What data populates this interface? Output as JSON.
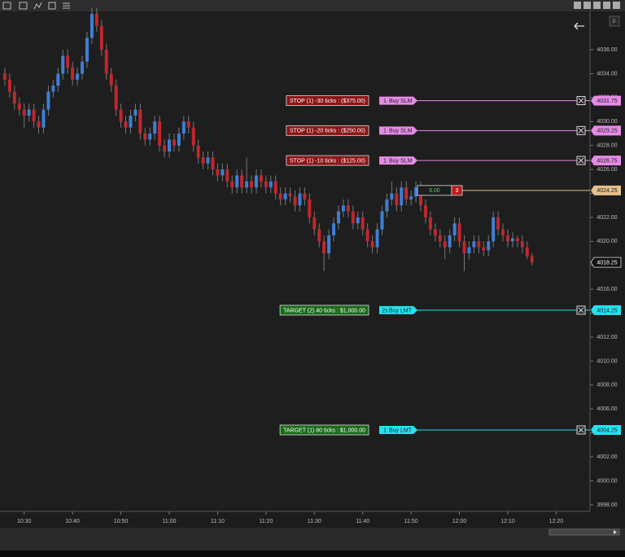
{
  "toolbar": {
    "flag": "F"
  },
  "chart_data": {
    "type": "candlestick",
    "x": [
      626,
      627,
      628,
      629,
      630,
      631,
      632,
      633,
      634,
      635,
      636,
      637,
      638,
      639,
      640,
      641,
      642,
      643,
      644,
      645,
      646,
      647,
      648,
      649,
      650,
      651,
      652,
      653,
      654,
      655,
      656,
      657,
      658,
      659,
      660,
      661,
      662,
      663,
      664,
      665,
      666,
      667,
      668,
      669,
      670,
      671,
      672,
      673,
      674,
      675,
      676,
      677,
      678,
      679,
      680,
      681,
      682,
      683,
      684,
      685,
      686,
      687,
      688,
      689,
      690,
      691,
      692,
      693,
      694,
      695,
      696,
      697,
      698,
      699,
      700,
      701,
      702,
      703,
      704,
      705,
      706,
      707,
      708,
      709,
      710,
      711,
      712,
      713,
      714,
      715,
      716,
      717,
      718,
      719,
      720,
      721,
      722,
      723,
      724,
      725,
      726,
      727,
      728,
      729,
      730,
      731,
      732,
      733,
      734,
      735
    ],
    "open": [
      4034,
      4033.5,
      4032.5,
      4031.5,
      4031,
      4030.5,
      4031,
      4030,
      4029.5,
      4031,
      4032.5,
      4033,
      4034,
      4035.5,
      4034.5,
      4033.5,
      4034,
      4035,
      4037,
      4039,
      4038,
      4036,
      4034,
      4033,
      4031,
      4030,
      4029.5,
      4030.5,
      4031,
      4029,
      4028.5,
      4029,
      4030,
      4028,
      4027.5,
      4028.5,
      4028,
      4029,
      4030,
      4029.5,
      4028,
      4027,
      4026.5,
      4027,
      4026,
      4025.5,
      4026,
      4025,
      4024.5,
      4025.5,
      4024.5,
      4025,
      4024.5,
      4025.5,
      4025,
      4024.5,
      4025,
      4024,
      4023.5,
      4024,
      4023.75,
      4023,
      4024,
      4023.5,
      4022,
      4021,
      4020,
      4019,
      4020.5,
      4021.5,
      4022.5,
      4023,
      4022.5,
      4021.5,
      4022,
      4021,
      4020,
      4019.5,
      4021,
      4022.5,
      4023.5,
      4024,
      4023,
      4024.5,
      4023.5,
      4023.75,
      4024.5,
      4023,
      4022,
      4021,
      4020.5,
      4020,
      4019.5,
      4020.5,
      4021.5,
      4020,
      4019,
      4019.5,
      4020,
      4019.5,
      4019.25,
      4020,
      4022,
      4021,
      4020.5,
      4020,
      4020.25,
      4020,
      4019.5,
      4018.75
    ],
    "high": [
      4034.5,
      4034,
      4033,
      4032,
      4031.5,
      4031.5,
      4031.5,
      4030.5,
      4031.5,
      4033,
      4033.5,
      4034.5,
      4036,
      4036,
      4035,
      4034.5,
      4035.5,
      4037.5,
      4039.5,
      4039.5,
      4038.5,
      4036.5,
      4034.5,
      4033.5,
      4031.5,
      4030.5,
      4031,
      4031.5,
      4031.5,
      4029.5,
      4029.5,
      4030.5,
      4030.5,
      4028.5,
      4029,
      4029,
      4029.5,
      4030.5,
      4030.5,
      4030,
      4028.5,
      4027.5,
      4027.5,
      4027.5,
      4026.5,
      4026.5,
      4026.5,
      4025.5,
      4026,
      4026,
      4027,
      4025.5,
      4026,
      4026,
      4025.5,
      4025.5,
      4025.5,
      4024.5,
      4024.5,
      4024.5,
      4024.25,
      4024.5,
      4024.5,
      4024,
      4022.5,
      4021.5,
      4020.5,
      4021,
      4022,
      4023,
      4023.5,
      4023.5,
      4023,
      4022.5,
      4022.5,
      4021.5,
      4020.5,
      4021.5,
      4023,
      4024,
      4025,
      4024.5,
      4025,
      4025,
      4024.25,
      4025,
      4025,
      4023.5,
      4022.5,
      4021.5,
      4021,
      4020.5,
      4021,
      4022,
      4022,
      4020.5,
      4020,
      4020.5,
      4020.5,
      4020,
      4020.5,
      4022.5,
      4022.5,
      4021.5,
      4021,
      4020.75,
      4020.5,
      4020.5,
      4020,
      4019
    ],
    "low": [
      4033,
      4032,
      4031,
      4030.5,
      4029.5,
      4030,
      4029.5,
      4029,
      4029,
      4030.5,
      4032,
      4032.5,
      4033.5,
      4034,
      4033,
      4033,
      4033.5,
      4034.5,
      4036.5,
      4037.5,
      4035.5,
      4033.5,
      4032.5,
      4030.5,
      4029.5,
      4029,
      4029,
      4030,
      4028.5,
      4028,
      4028,
      4028.5,
      4027.5,
      4027,
      4027,
      4027.5,
      4027.5,
      4028.5,
      4029,
      4027.5,
      4026.5,
      4026,
      4026,
      4025.5,
      4025,
      4025,
      4024.5,
      4024,
      4024,
      4024,
      4024,
      4024,
      4024,
      4024.5,
      4024,
      4024,
      4023.5,
      4023,
      4023,
      4023.25,
      4022.5,
      4022.5,
      4023,
      4021.5,
      4020.5,
      4019.5,
      4017.5,
      4018.5,
      4020,
      4021,
      4022,
      4022,
      4021,
      4021,
      4020.5,
      4019.5,
      4019,
      4019,
      4020.5,
      4022,
      4023,
      4022.5,
      4022.5,
      4023,
      4023,
      4023.25,
      4022.5,
      4021.5,
      4020.5,
      4020,
      4019.5,
      4018.5,
      4019,
      4020,
      4019.5,
      4017.5,
      4018.5,
      4019,
      4019,
      4018.75,
      4018.75,
      4019.5,
      4020.5,
      4020,
      4019.5,
      4019.5,
      4019.5,
      4019,
      4018.5,
      4018
    ],
    "close": [
      4033.5,
      4032.5,
      4031.5,
      4031,
      4030.5,
      4031,
      4030,
      4029.5,
      4031,
      4032.5,
      4033,
      4034,
      4035.5,
      4034.5,
      4033.5,
      4034,
      4035,
      4037,
      4039,
      4038,
      4036,
      4034,
      4033,
      4031,
      4030,
      4029.5,
      4030.5,
      4031,
      4029,
      4028.5,
      4029,
      4030,
      4028,
      4027.5,
      4028.5,
      4028,
      4029,
      4030,
      4029.5,
      4028,
      4027,
      4026.5,
      4027,
      4026,
      4025.5,
      4026,
      4025,
      4024.5,
      4025.5,
      4024.5,
      4025,
      4024.5,
      4025.5,
      4025,
      4024.5,
      4025,
      4024,
      4023.5,
      4024,
      4023.75,
      4023,
      4024,
      4023.5,
      4022,
      4021,
      4020,
      4019,
      4020.5,
      4021.5,
      4022.5,
      4023,
      4022.5,
      4021.5,
      4022,
      4021,
      4020,
      4019.5,
      4021,
      4022.5,
      4023.5,
      4024,
      4023,
      4024.5,
      4023.5,
      4023.75,
      4024.5,
      4023,
      4022,
      4021,
      4020.5,
      4020,
      4019.5,
      4020.5,
      4021.5,
      4020,
      4019,
      4019.5,
      4020,
      4019.5,
      4019.25,
      4020,
      4022,
      4021,
      4020.5,
      4020,
      4020.25,
      4020,
      4019.5,
      4018.75,
      4018.25
    ],
    "up_color": "#3d7fd6",
    "down_color": "#c1272d",
    "xlim": [
      625,
      747
    ],
    "xticks": [
      {
        "value": 630,
        "label": "10:30"
      },
      {
        "value": 640,
        "label": "10:40"
      },
      {
        "value": 650,
        "label": "10:50"
      },
      {
        "value": 660,
        "label": "11:00"
      },
      {
        "value": 670,
        "label": "11:10"
      },
      {
        "value": 680,
        "label": "11:20"
      },
      {
        "value": 690,
        "label": "11:30"
      },
      {
        "value": 700,
        "label": "11:40"
      },
      {
        "value": 710,
        "label": "11:50"
      },
      {
        "value": 720,
        "label": "12:00"
      },
      {
        "value": 730,
        "label": "12:10"
      },
      {
        "value": 740,
        "label": "12:20"
      }
    ],
    "ylim": [
      3997.45,
      4039.2
    ],
    "yticks": [
      {
        "value": 3998,
        "label": "3998.00"
      },
      {
        "value": 4000,
        "label": "4000.00"
      },
      {
        "value": 4002,
        "label": "4002.00"
      },
      {
        "value": 4004,
        "label": "4004.00"
      },
      {
        "value": 4006,
        "label": "4006.00"
      },
      {
        "value": 4008,
        "label": "4008.00"
      },
      {
        "value": 4010,
        "label": "4010.00"
      },
      {
        "value": 4012,
        "label": "4012.00"
      },
      {
        "value": 4014,
        "label": "4014.00"
      },
      {
        "value": 4016,
        "label": "4016.00"
      },
      {
        "value": 4018,
        "label": "4018.00"
      },
      {
        "value": 4020,
        "label": "4020.00"
      },
      {
        "value": 4022,
        "label": "4022.00"
      },
      {
        "value": 4024,
        "label": "4024.00"
      },
      {
        "value": 4026,
        "label": "4026.00"
      },
      {
        "value": 4028,
        "label": "4028.00"
      },
      {
        "value": 4030,
        "label": "4030.00"
      },
      {
        "value": 4032,
        "label": "4032.00"
      },
      {
        "value": 4034,
        "label": "4034.00"
      },
      {
        "value": 4036,
        "label": "4036.00"
      }
    ],
    "orders": [
      {
        "label": "STOP (1) -30 ticks : ($375.00)",
        "quantity": "1",
        "action": "Buy SLM",
        "price": {
          "value": 4031.75,
          "label": "4031.75"
        },
        "color": "#e58be5",
        "label_color": "#8a1515"
      },
      {
        "label": "STOP (1) -20 ticks : ($250.00)",
        "quantity": "1",
        "action": "Buy SLM",
        "price": {
          "value": 4029.25,
          "label": "4029.25"
        },
        "color": "#e58be5",
        "label_color": "#8a1515"
      },
      {
        "label": "STOP (1) -10 ticks : ($125.00)",
        "quantity": "1",
        "action": "Buy SLM",
        "price": {
          "value": 4026.75,
          "label": "4026.75"
        },
        "color": "#e58be5",
        "label_color": "#8a1515"
      },
      {
        "label": "TARGET (2) 40 ticks : $1,000.00",
        "quantity": "2s",
        "action": "Buy LMT",
        "price": {
          "value": 4014.25,
          "label": "4014.25"
        },
        "color": "#22e3ef",
        "label_color": "#1b6a1b"
      },
      {
        "label": "TARGET (1) 80 ticks : $1,000.00",
        "quantity": "1",
        "action": "Buy LMT",
        "price": {
          "value": 4004.25,
          "label": "4004.25"
        },
        "color": "#22e3ef",
        "label_color": "#1b6a1b"
      }
    ],
    "position": {
      "pnl": "6.00",
      "quantity": "3",
      "price": {
        "value": 4024.25,
        "label": "4024.25"
      },
      "color": "#e6c08a"
    },
    "last_price": {
      "value": 4018.25,
      "label": "4018.25"
    }
  }
}
